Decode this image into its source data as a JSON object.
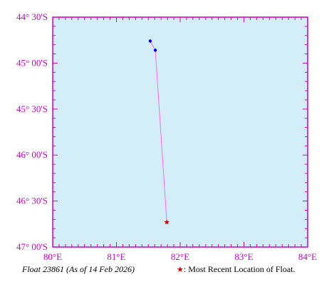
{
  "map": {
    "background_color": "#d3eef8",
    "frame_color": "#cc00cc",
    "track_color": "#ff66ff",
    "point_color": "#0000ff",
    "latest_color": "#cc0000",
    "lon_range": [
      80,
      84
    ],
    "lat_range": [
      -47.0,
      -44.5
    ],
    "lon_ticks": [
      {
        "value": 80,
        "label": "80°E"
      },
      {
        "value": 81,
        "label": "81°E"
      },
      {
        "value": 82,
        "label": "82°E"
      },
      {
        "value": 83,
        "label": "83°E"
      },
      {
        "value": 84,
        "label": "84°E"
      }
    ],
    "lat_ticks": [
      {
        "value": -44.5,
        "label": "44° 30'S"
      },
      {
        "value": -45.0,
        "label": "45° 00'S"
      },
      {
        "value": -45.5,
        "label": "45° 30'S"
      },
      {
        "value": -46.0,
        "label": "46° 00'S"
      },
      {
        "value": -46.5,
        "label": "46° 30'S"
      },
      {
        "value": -47.0,
        "label": "47° 00'S"
      }
    ],
    "track": [
      {
        "lon": 81.53,
        "lat": -44.76
      },
      {
        "lon": 81.61,
        "lat": -44.86
      },
      {
        "lon": 81.79,
        "lat": -46.73
      }
    ],
    "latest_marker": "star"
  },
  "caption": {
    "float_label": "Float 23861 (As of 14 Feb 2026)",
    "star_symbol": "★",
    "legend_text": ": Most Recent Location of Float."
  }
}
